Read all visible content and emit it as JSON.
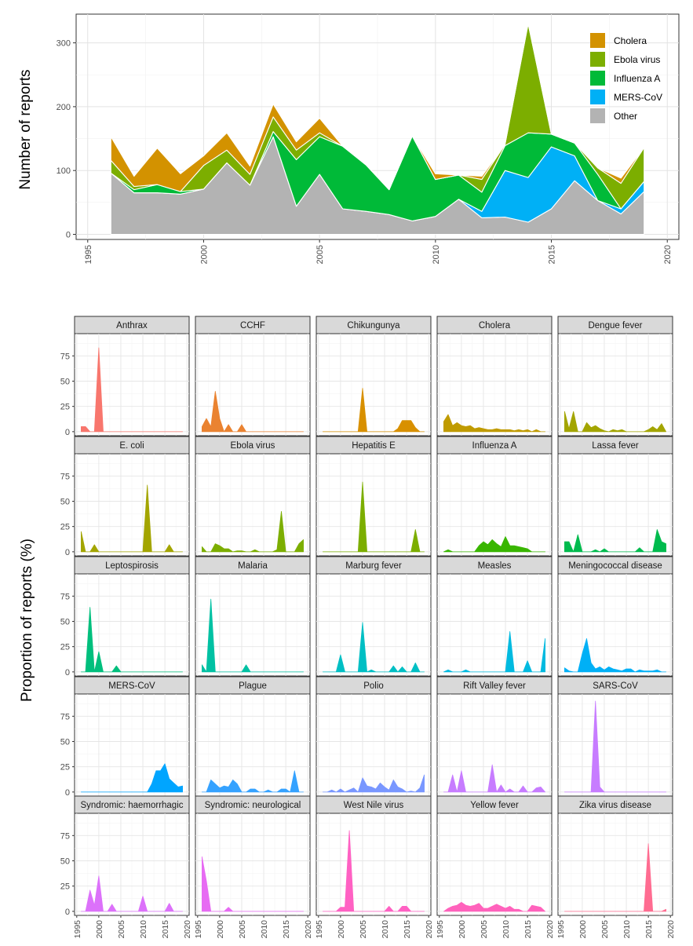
{
  "chart_data": [
    {
      "type": "area",
      "stacked": true,
      "xlabel": "",
      "ylabel": "Number of reports",
      "xlim": [
        1994.5,
        2020.5
      ],
      "ylim": [
        -8,
        345
      ],
      "x_ticks": [
        1995,
        2000,
        2005,
        2010,
        2015,
        2020
      ],
      "y_ticks": [
        0,
        100,
        200,
        300
      ],
      "legend_position": "top-right",
      "x": [
        1996,
        1997,
        1998,
        1999,
        2000,
        2001,
        2002,
        2003,
        2004,
        2005,
        2006,
        2007,
        2008,
        2009,
        2010,
        2011,
        2012,
        2013,
        2014,
        2015,
        2016,
        2017,
        2018,
        2019
      ],
      "series": [
        {
          "name": "Other",
          "color": "#B3B3B3",
          "values": [
            96,
            65,
            65,
            63,
            71,
            112,
            77,
            153,
            44,
            94,
            40,
            36,
            31,
            21,
            28,
            55,
            26,
            27,
            19,
            40,
            84,
            53,
            32,
            67
          ]
        },
        {
          "name": "MERS-CoV",
          "color": "#00B0F6",
          "values": [
            0,
            0,
            0,
            0,
            0,
            0,
            0,
            0,
            0,
            0,
            0,
            0,
            0,
            0,
            0,
            0,
            10,
            73,
            70,
            97,
            39,
            0,
            8,
            16
          ]
        },
        {
          "name": "Influenza A",
          "color": "#00BA38",
          "values": [
            0,
            5,
            13,
            4,
            0,
            0,
            0,
            8,
            73,
            59,
            98,
            73,
            39,
            133,
            58,
            38,
            30,
            39,
            70,
            20,
            20,
            41,
            0,
            0
          ]
        },
        {
          "name": "Ebola virus",
          "color": "#7CAE00",
          "values": [
            20,
            5,
            0,
            0,
            37,
            20,
            17,
            23,
            15,
            6,
            0,
            0,
            0,
            0,
            0,
            0,
            20,
            2,
            171,
            0,
            0,
            10,
            40,
            53
          ]
        },
        {
          "name": "Cholera",
          "color": "#D39200",
          "values": [
            37,
            16,
            57,
            28,
            15,
            27,
            13,
            20,
            13,
            23,
            0,
            0,
            0,
            0,
            9,
            0,
            5,
            0,
            0,
            0,
            0,
            0,
            8,
            0
          ]
        }
      ],
      "legend": [
        "Cholera",
        "Ebola virus",
        "Influenza A",
        "MERS-CoV",
        "Other"
      ]
    },
    {
      "type": "area",
      "layout": "facet_grid",
      "ncol": 5,
      "ylabel": "Proportion of reports (%)",
      "xlabel": "",
      "xlim": [
        1994.5,
        2020.5
      ],
      "ylim": [
        -4,
        97
      ],
      "x_ticks": [
        1995,
        2000,
        2005,
        2010,
        2015,
        2020
      ],
      "y_ticks": [
        0,
        25,
        50,
        75
      ],
      "x": [
        1996,
        1997,
        1998,
        1999,
        2000,
        2001,
        2002,
        2003,
        2004,
        2005,
        2006,
        2007,
        2008,
        2009,
        2010,
        2011,
        2012,
        2013,
        2014,
        2015,
        2016,
        2017,
        2018,
        2019
      ],
      "panels": [
        {
          "name": "Anthrax",
          "color": "#F8766D",
          "values": [
            5,
            5,
            0,
            0,
            83,
            0,
            0,
            0,
            0,
            0,
            0,
            0,
            0,
            0,
            0,
            0,
            0,
            0,
            0,
            0,
            0,
            0,
            0,
            0
          ]
        },
        {
          "name": "CCHF",
          "color": "#EA8331",
          "values": [
            5,
            13,
            5,
            40,
            13,
            0,
            7,
            0,
            0,
            7,
            0,
            0,
            0,
            0,
            0,
            0,
            0,
            0,
            0,
            0,
            0,
            0,
            0,
            0
          ]
        },
        {
          "name": "Chikungunya",
          "color": "#D89000",
          "values": [
            0,
            0,
            0,
            0,
            0,
            0,
            0,
            0,
            0,
            43,
            0,
            0,
            0,
            0,
            0,
            0,
            0,
            3,
            11,
            11,
            11,
            4,
            0,
            0
          ]
        },
        {
          "name": "Cholera",
          "color": "#C09B00",
          "values": [
            10,
            17,
            6,
            9,
            6,
            5,
            6,
            3,
            4,
            3,
            2,
            2,
            3,
            2,
            2,
            2,
            1,
            2,
            1,
            2,
            0,
            2,
            0,
            0
          ]
        },
        {
          "name": "Dengue fever",
          "color": "#A3A500",
          "values": [
            20,
            3,
            20,
            0,
            0,
            9,
            4,
            6,
            3,
            1,
            0,
            2,
            1,
            2,
            0,
            0,
            0,
            0,
            0,
            2,
            5,
            2,
            8,
            0
          ]
        },
        {
          "name": "E. coli",
          "color": "#A3A500",
          "values": [
            20,
            0,
            0,
            7,
            0,
            0,
            0,
            0,
            0,
            0,
            0,
            0,
            0,
            0,
            0,
            66,
            0,
            0,
            0,
            0,
            7,
            0,
            0,
            0
          ]
        },
        {
          "name": "Ebola virus",
          "color": "#7CAE00",
          "values": [
            5,
            0,
            0,
            8,
            6,
            3,
            3,
            0,
            1,
            1,
            0,
            0,
            2,
            0,
            0,
            0,
            0,
            2,
            40,
            0,
            0,
            0,
            8,
            12
          ]
        },
        {
          "name": "Hepatitis E",
          "color": "#7CAE00",
          "values": [
            0,
            0,
            0,
            0,
            0,
            0,
            0,
            0,
            0,
            69,
            0,
            0,
            0,
            0,
            0,
            0,
            0,
            0,
            0,
            0,
            0,
            22,
            0,
            0
          ]
        },
        {
          "name": "Influenza A",
          "color": "#39B600",
          "values": [
            0,
            2,
            0,
            0,
            0,
            0,
            0,
            0,
            6,
            10,
            7,
            12,
            8,
            5,
            15,
            6,
            6,
            5,
            4,
            3,
            0,
            0,
            0,
            0
          ]
        },
        {
          "name": "Lassa fever",
          "color": "#00BB4E",
          "values": [
            10,
            10,
            0,
            17,
            0,
            0,
            0,
            2,
            0,
            3,
            0,
            0,
            0,
            0,
            0,
            0,
            0,
            4,
            0,
            0,
            0,
            22,
            10,
            8
          ]
        },
        {
          "name": "Leptospirosis",
          "color": "#00BF7D",
          "values": [
            0,
            0,
            64,
            0,
            20,
            0,
            0,
            0,
            6,
            0,
            0,
            0,
            0,
            0,
            0,
            0,
            0,
            0,
            0,
            0,
            0,
            0,
            0,
            0
          ]
        },
        {
          "name": "Malaria",
          "color": "#00C1A3",
          "values": [
            7,
            0,
            72,
            0,
            0,
            0,
            0,
            0,
            0,
            0,
            7,
            0,
            0,
            0,
            0,
            0,
            0,
            0,
            0,
            0,
            0,
            0,
            0,
            0
          ]
        },
        {
          "name": "Marburg fever",
          "color": "#00BFC4",
          "values": [
            0,
            0,
            0,
            0,
            17,
            0,
            0,
            0,
            0,
            49,
            0,
            2,
            0,
            0,
            0,
            0,
            6,
            0,
            5,
            0,
            0,
            9,
            0,
            0
          ]
        },
        {
          "name": "Measles",
          "color": "#00BAE0",
          "values": [
            0,
            2,
            0,
            0,
            0,
            2,
            0,
            0,
            0,
            0,
            0,
            0,
            0,
            0,
            0,
            40,
            0,
            0,
            0,
            11,
            0,
            0,
            0,
            33
          ]
        },
        {
          "name": "Meningococcal disease",
          "color": "#00B0F6",
          "values": [
            4,
            1,
            0,
            0,
            18,
            33,
            9,
            3,
            5,
            2,
            5,
            3,
            2,
            1,
            3,
            3,
            0,
            2,
            1,
            1,
            1,
            2,
            0,
            0
          ]
        },
        {
          "name": "MERS-CoV",
          "color": "#00A5FF",
          "values": [
            0,
            0,
            0,
            0,
            0,
            0,
            0,
            0,
            0,
            0,
            0,
            0,
            0,
            0,
            0,
            0,
            8,
            21,
            21,
            28,
            13,
            9,
            5,
            6
          ]
        },
        {
          "name": "Plague",
          "color": "#35A2FF",
          "values": [
            0,
            0,
            12,
            8,
            4,
            6,
            5,
            12,
            8,
            0,
            0,
            3,
            3,
            0,
            0,
            2,
            0,
            0,
            3,
            3,
            0,
            21,
            0,
            0
          ]
        },
        {
          "name": "Polio",
          "color": "#7997FF",
          "values": [
            0,
            0,
            2,
            0,
            3,
            0,
            2,
            4,
            0,
            14,
            6,
            5,
            3,
            9,
            5,
            2,
            12,
            5,
            3,
            0,
            1,
            0,
            4,
            17
          ]
        },
        {
          "name": "Rift Valley fever",
          "color": "#C77CFF",
          "values": [
            0,
            0,
            17,
            0,
            21,
            0,
            0,
            0,
            0,
            0,
            0,
            27,
            0,
            7,
            0,
            3,
            0,
            0,
            6,
            0,
            0,
            4,
            5,
            0
          ]
        },
        {
          "name": "SARS-CoV",
          "color": "#C77CFF",
          "values": [
            0,
            0,
            0,
            0,
            0,
            0,
            0,
            90,
            5,
            0,
            0,
            0,
            0,
            0,
            0,
            0,
            0,
            0,
            0,
            0,
            0,
            0,
            0,
            0
          ]
        },
        {
          "name": "Syndromic: haemorrhagic",
          "color": "#DC71FA",
          "values": [
            0,
            0,
            21,
            6,
            35,
            0,
            0,
            7,
            0,
            0,
            0,
            0,
            0,
            0,
            15,
            0,
            0,
            0,
            0,
            0,
            8,
            0,
            0,
            0
          ]
        },
        {
          "name": "Syndromic: neurological",
          "color": "#E76BF3",
          "values": [
            54,
            30,
            0,
            0,
            0,
            0,
            4,
            0,
            0,
            0,
            0,
            0,
            0,
            0,
            0,
            0,
            0,
            0,
            0,
            0,
            0,
            0,
            0,
            0
          ]
        },
        {
          "name": "West Nile virus",
          "color": "#FF61C3",
          "values": [
            0,
            0,
            0,
            0,
            4,
            4,
            80,
            0,
            0,
            0,
            0,
            0,
            0,
            0,
            0,
            5,
            0,
            0,
            5,
            5,
            0,
            0,
            0,
            0
          ]
        },
        {
          "name": "Yellow fever",
          "color": "#FF62BC",
          "values": [
            0,
            3,
            5,
            6,
            9,
            6,
            5,
            6,
            8,
            3,
            3,
            5,
            7,
            5,
            3,
            5,
            2,
            2,
            0,
            0,
            6,
            5,
            4,
            0
          ]
        },
        {
          "name": "Zika virus disease",
          "color": "#FF6C91",
          "values": [
            0,
            0,
            0,
            0,
            0,
            0,
            0,
            0,
            0,
            0,
            0,
            0,
            0,
            0,
            0,
            0,
            0,
            0,
            0,
            67,
            0,
            0,
            0,
            2
          ]
        }
      ]
    }
  ]
}
